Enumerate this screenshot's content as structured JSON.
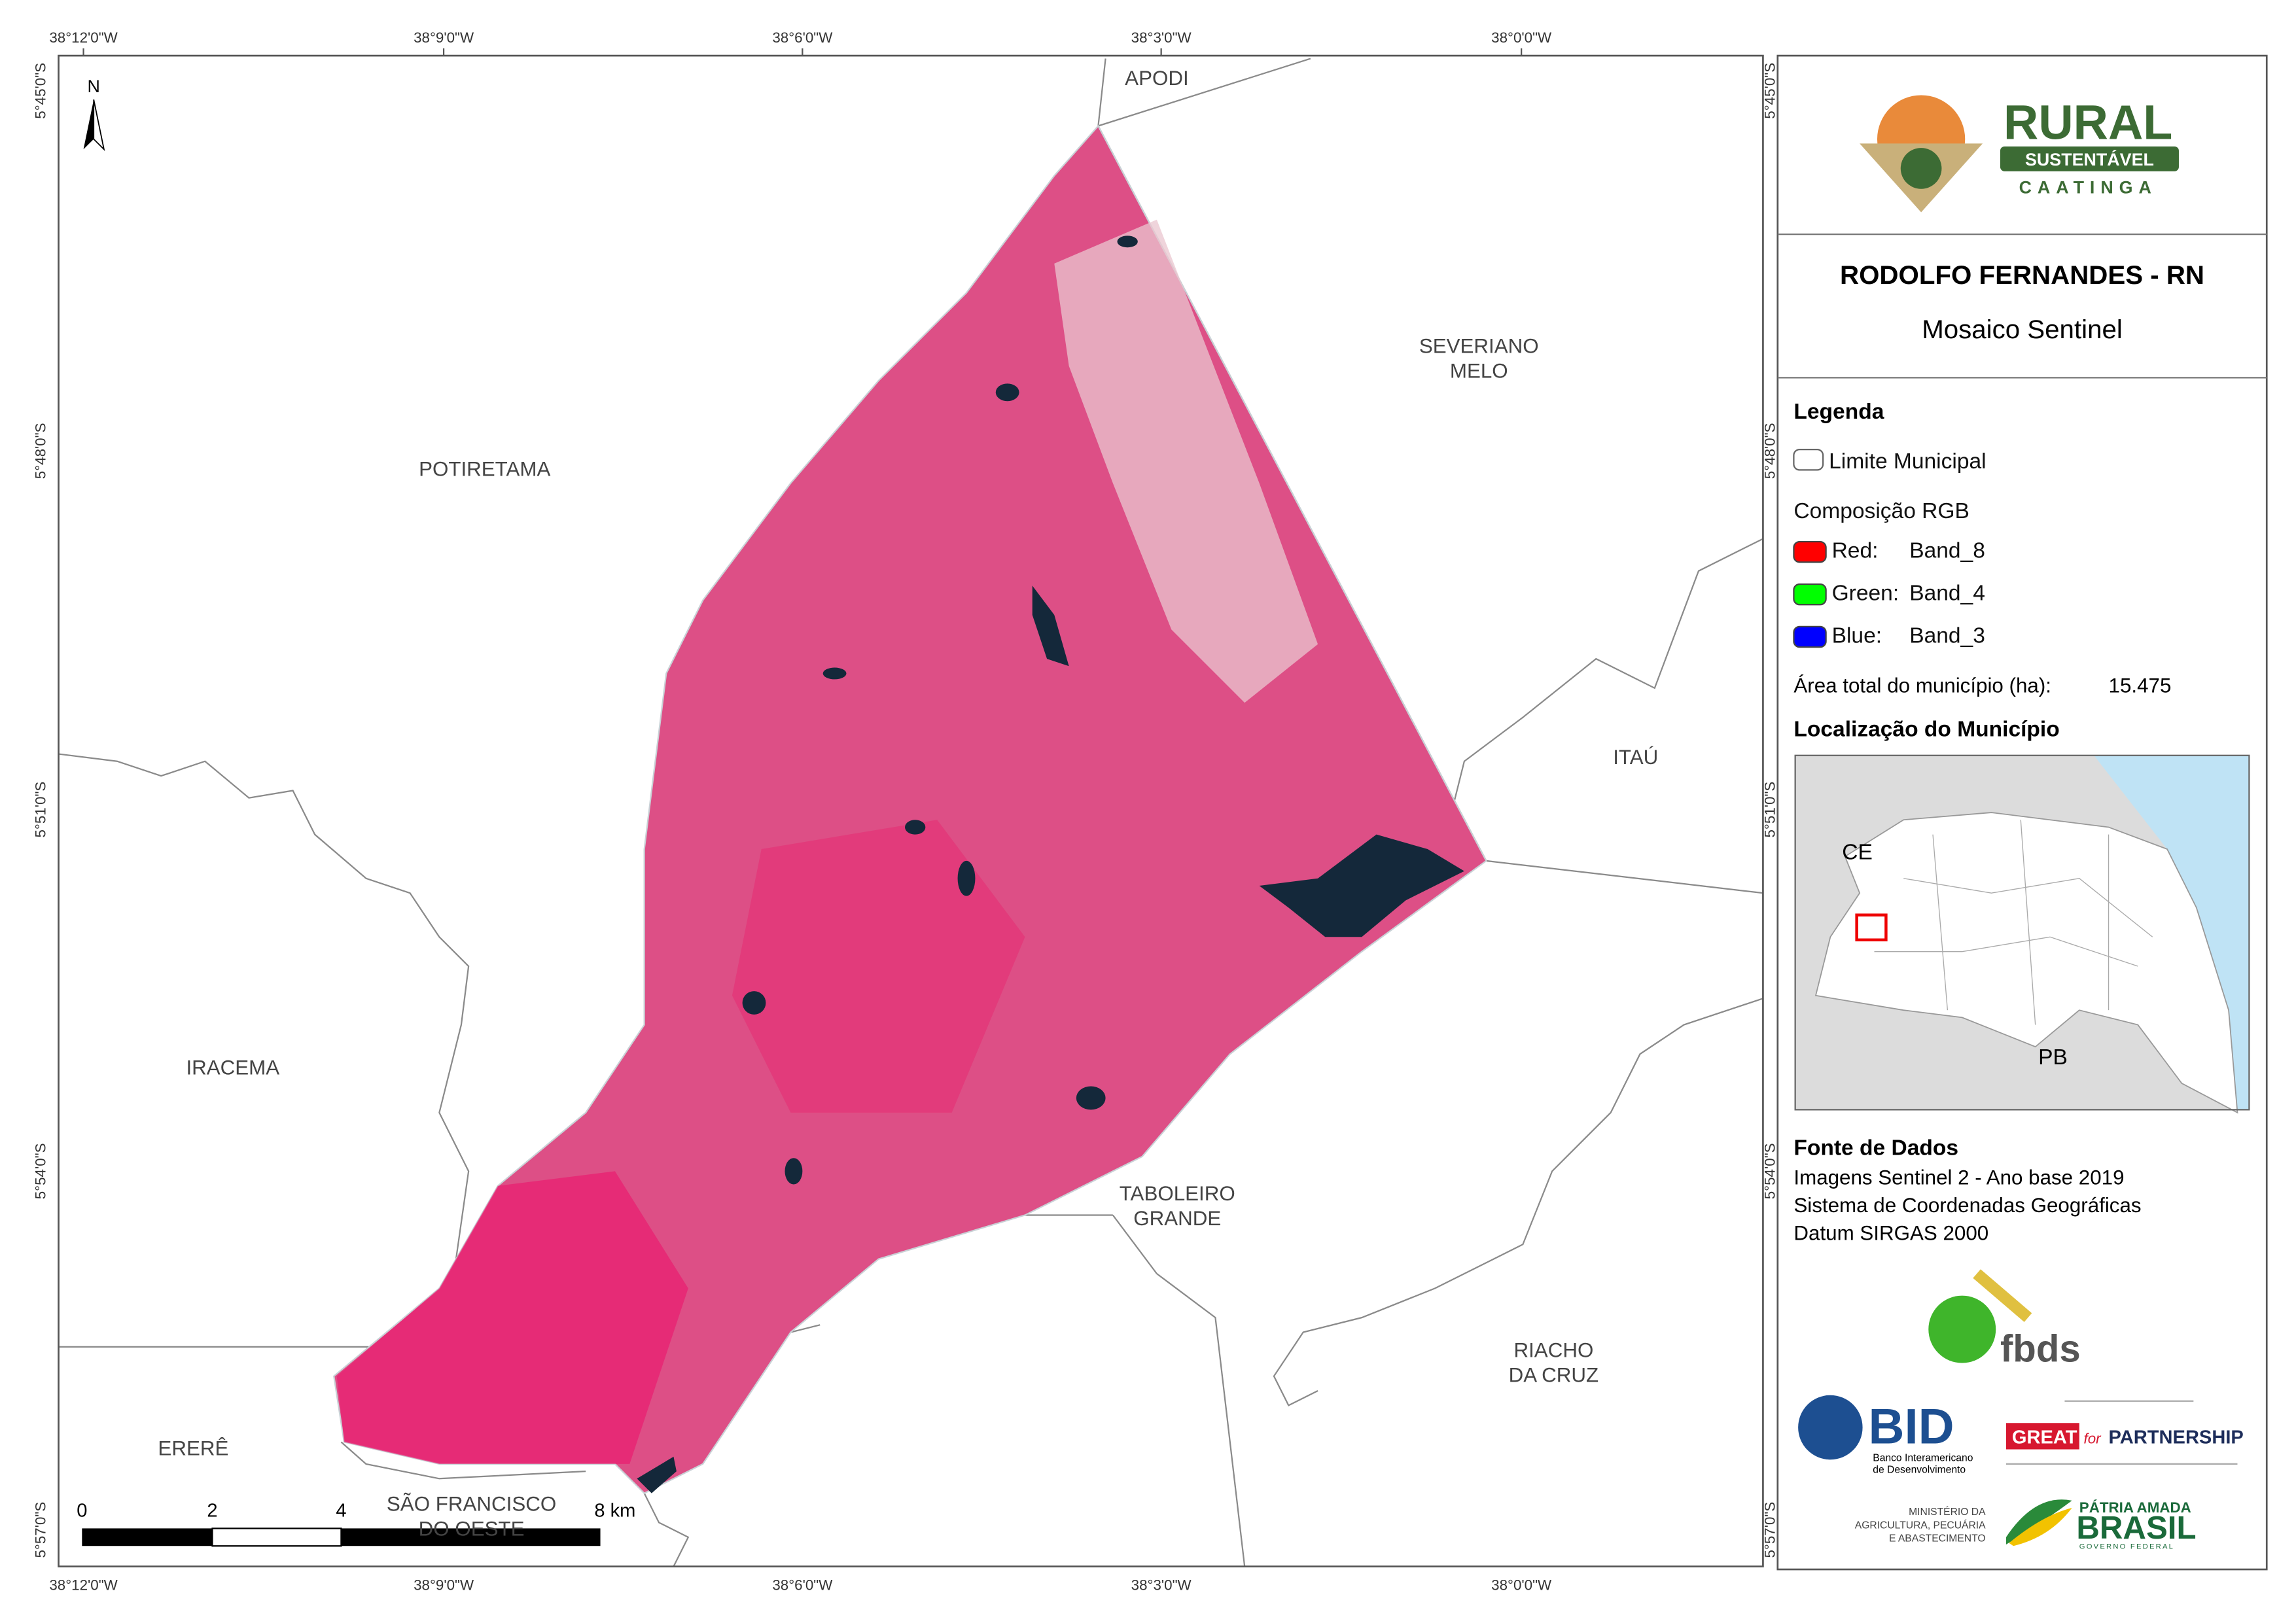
{
  "map": {
    "north": "N",
    "lon_labels": [
      "38°12'0\"W",
      "38°9'0\"W",
      "38°6'0\"W",
      "38°3'0\"W",
      "38°0'0\"W"
    ],
    "lat_labels": [
      "5°45'0\"S",
      "5°48'0\"S",
      "5°51'0\"S",
      "5°54'0\"S",
      "5°57'0\"S"
    ],
    "places": [
      [
        "APODI"
      ],
      [
        "SEVERIANO",
        "MELO"
      ],
      [
        "POTIRETAMA"
      ],
      [
        "ITAÚ"
      ],
      [
        "IRACEMA"
      ],
      [
        "TABOLEIRO",
        "GRANDE"
      ],
      [
        "RIACHO",
        "DA CRUZ"
      ],
      [
        "ERERÊ"
      ],
      [
        "SÃO FRANCISCO",
        "DO OESTE"
      ]
    ],
    "scale_labels": [
      "0",
      "2",
      "4",
      "8 km"
    ]
  },
  "panel": {
    "brand": {
      "title": "RURAL",
      "subtitle": "SUSTENTÁVEL",
      "tagline": "CAATINGA"
    },
    "title": "RODOLFO FERNANDES - RN",
    "subtitle": "Mosaico Sentinel",
    "legend": {
      "heading": "Legenda",
      "boundary": "Limite Municipal",
      "composition": "Composição RGB",
      "bands": [
        {
          "channel": "Red:",
          "band": "Band_8",
          "color": "#ff0000"
        },
        {
          "channel": "Green:",
          "band": "Band_4",
          "color": "#00ff00"
        },
        {
          "channel": "Blue:",
          "band": "Band_3",
          "color": "#0000ff"
        }
      ],
      "area_label": "Área total do município (ha):",
      "area_value": "15.475"
    },
    "location": {
      "heading": "Localização do Município",
      "labels": [
        "CE",
        "PB"
      ]
    },
    "sources": {
      "heading": "Fonte de Dados",
      "lines": [
        "Imagens Sentinel 2 - Ano base 2019",
        "Sistema de Coordenadas Geográficas",
        "Datum SIRGAS 2000"
      ]
    },
    "logos": {
      "fbds": "fbds",
      "bid": "BID",
      "bid_name": [
        "Banco Interamericano",
        "de Desenvolvimento"
      ],
      "great": "GREAT",
      "great_for": "for",
      "partnership": "PARTNERSHIP",
      "ministry": [
        "MINISTÉRIO DA",
        "AGRICULTURA, PECUÁRIA",
        "E ABASTECIMENTO"
      ],
      "brasil_top": "PÁTRIA AMADA",
      "brasil": "BRASIL",
      "brasil_sub": "GOVERNO FEDERAL"
    }
  }
}
